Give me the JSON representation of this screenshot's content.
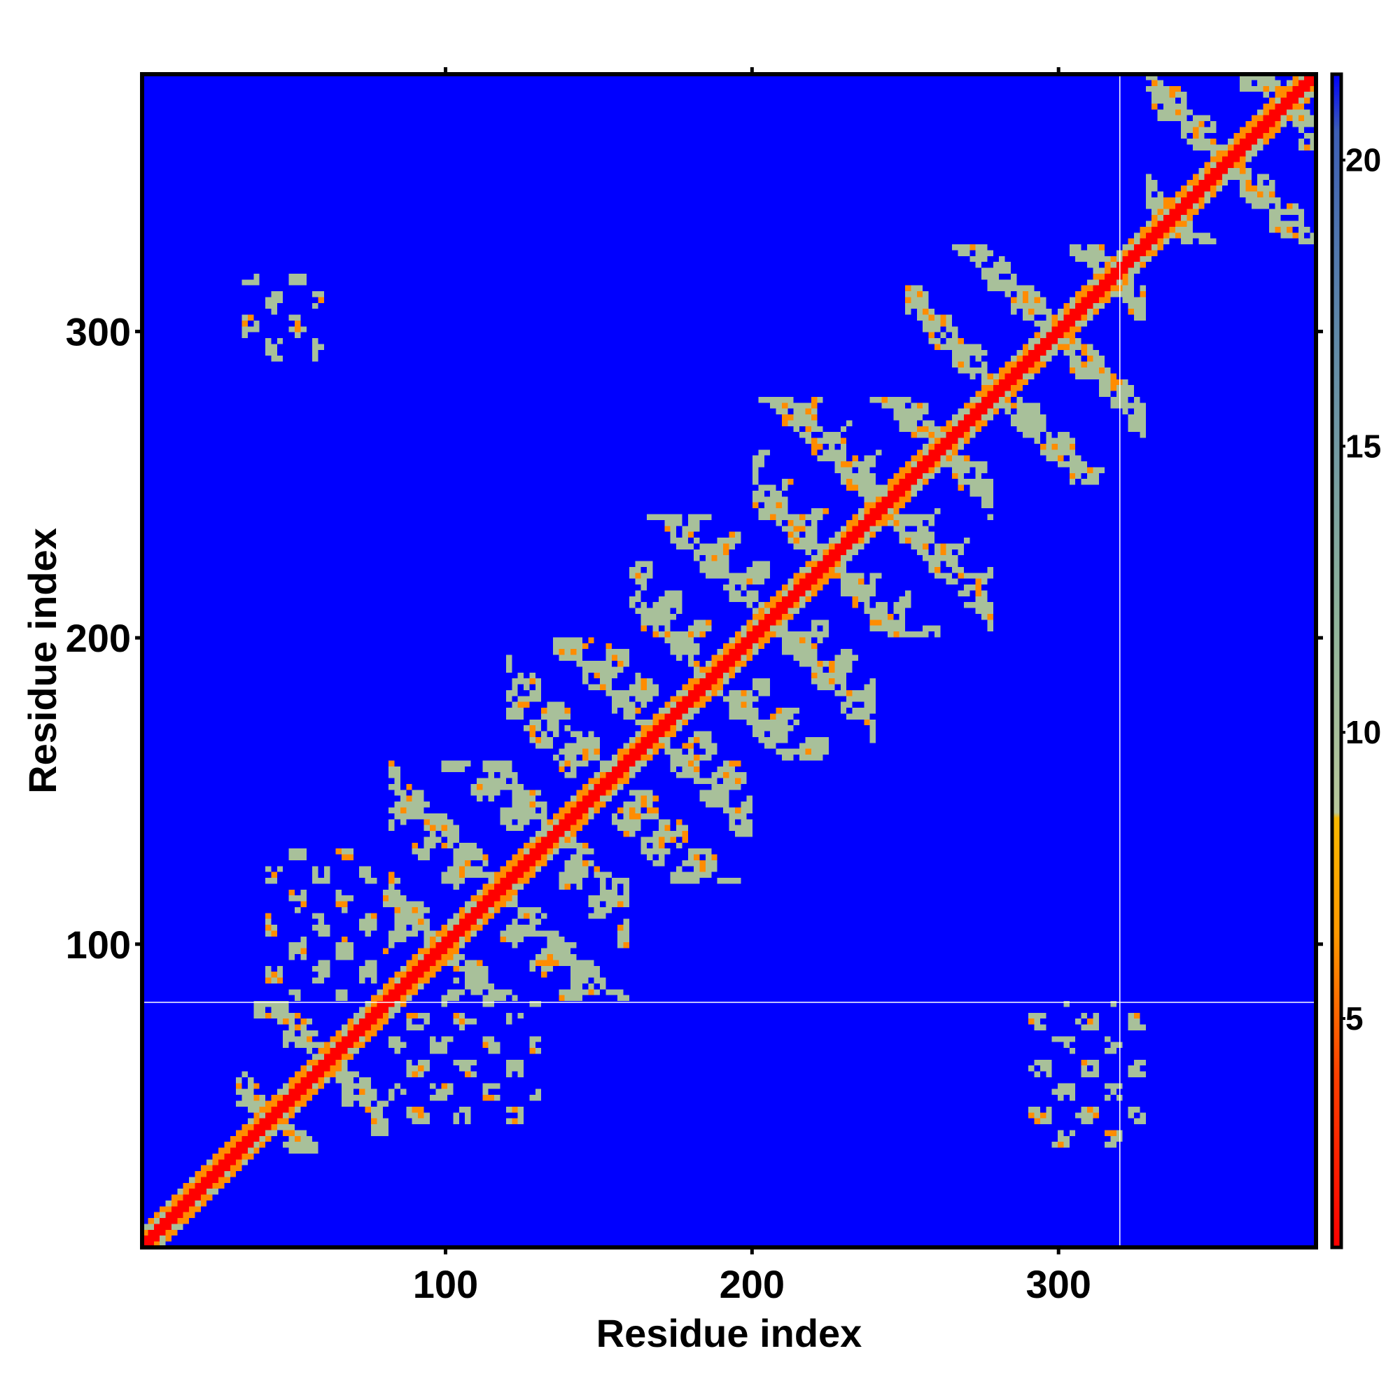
{
  "chart_data": {
    "type": "heatmap",
    "title": "",
    "xlabel": "Residue index",
    "ylabel": "Residue index",
    "n_residues": 384,
    "xlim": [
      1,
      384
    ],
    "ylim": [
      1,
      384
    ],
    "x_ticks": [
      {
        "value": 100,
        "label": "100"
      },
      {
        "value": 200,
        "label": "200"
      },
      {
        "value": 300,
        "label": "300"
      }
    ],
    "y_ticks": [
      {
        "value": 100,
        "label": "100"
      },
      {
        "value": 200,
        "label": "200"
      },
      {
        "value": 300,
        "label": "300"
      }
    ],
    "colorbar": {
      "min": 1,
      "max": 21.5,
      "ticks": [
        {
          "value": 5,
          "label": "5"
        },
        {
          "value": 10,
          "label": "10"
        },
        {
          "value": 15,
          "label": "15"
        },
        {
          "value": 20,
          "label": "20"
        }
      ],
      "stops": [
        {
          "value": 1,
          "color": "#ff0000"
        },
        {
          "value": 4,
          "color": "#ff4000"
        },
        {
          "value": 6.5,
          "color": "#ff9a00"
        },
        {
          "value": 8.5,
          "color": "#f8b800"
        },
        {
          "value": 8.6,
          "color": "#b8c79a"
        },
        {
          "value": 12,
          "color": "#8fb39a"
        },
        {
          "value": 17,
          "color": "#5f88a8"
        },
        {
          "value": 20.5,
          "color": "#3d5fb5"
        },
        {
          "value": 21.5,
          "color": "#0000ff"
        }
      ]
    },
    "background_color": "#0000ff",
    "diagonal_color": "#ff0000",
    "contact_color": "#a8c09a",
    "close_contact_color": "#ff8c00",
    "guide_lines": {
      "x": 320,
      "y": 81,
      "color": "#ffffff"
    },
    "domain_blocks": [
      {
        "x": [
          30,
          80
        ],
        "y": [
          30,
          80
        ]
      },
      {
        "x": [
          80,
          160
        ],
        "y": [
          80,
          160
        ]
      },
      {
        "x": [
          120,
          200
        ],
        "y": [
          120,
          200
        ]
      },
      {
        "x": [
          160,
          240
        ],
        "y": [
          160,
          240
        ]
      },
      {
        "x": [
          200,
          280
        ],
        "y": [
          200,
          280
        ]
      },
      {
        "x": [
          250,
          330
        ],
        "y": [
          250,
          330
        ]
      },
      {
        "x": [
          330,
          384
        ],
        "y": [
          330,
          384
        ]
      }
    ],
    "off_diagonal_blocks": [
      {
        "x": [
          30,
          60
        ],
        "y": [
          290,
          320
        ]
      },
      {
        "x": [
          290,
          330
        ],
        "y": [
          30,
          80
        ]
      },
      {
        "x": [
          40,
          100
        ],
        "y": [
          80,
          130
        ]
      },
      {
        "x": [
          80,
          130
        ],
        "y": [
          40,
          100
        ]
      }
    ]
  }
}
